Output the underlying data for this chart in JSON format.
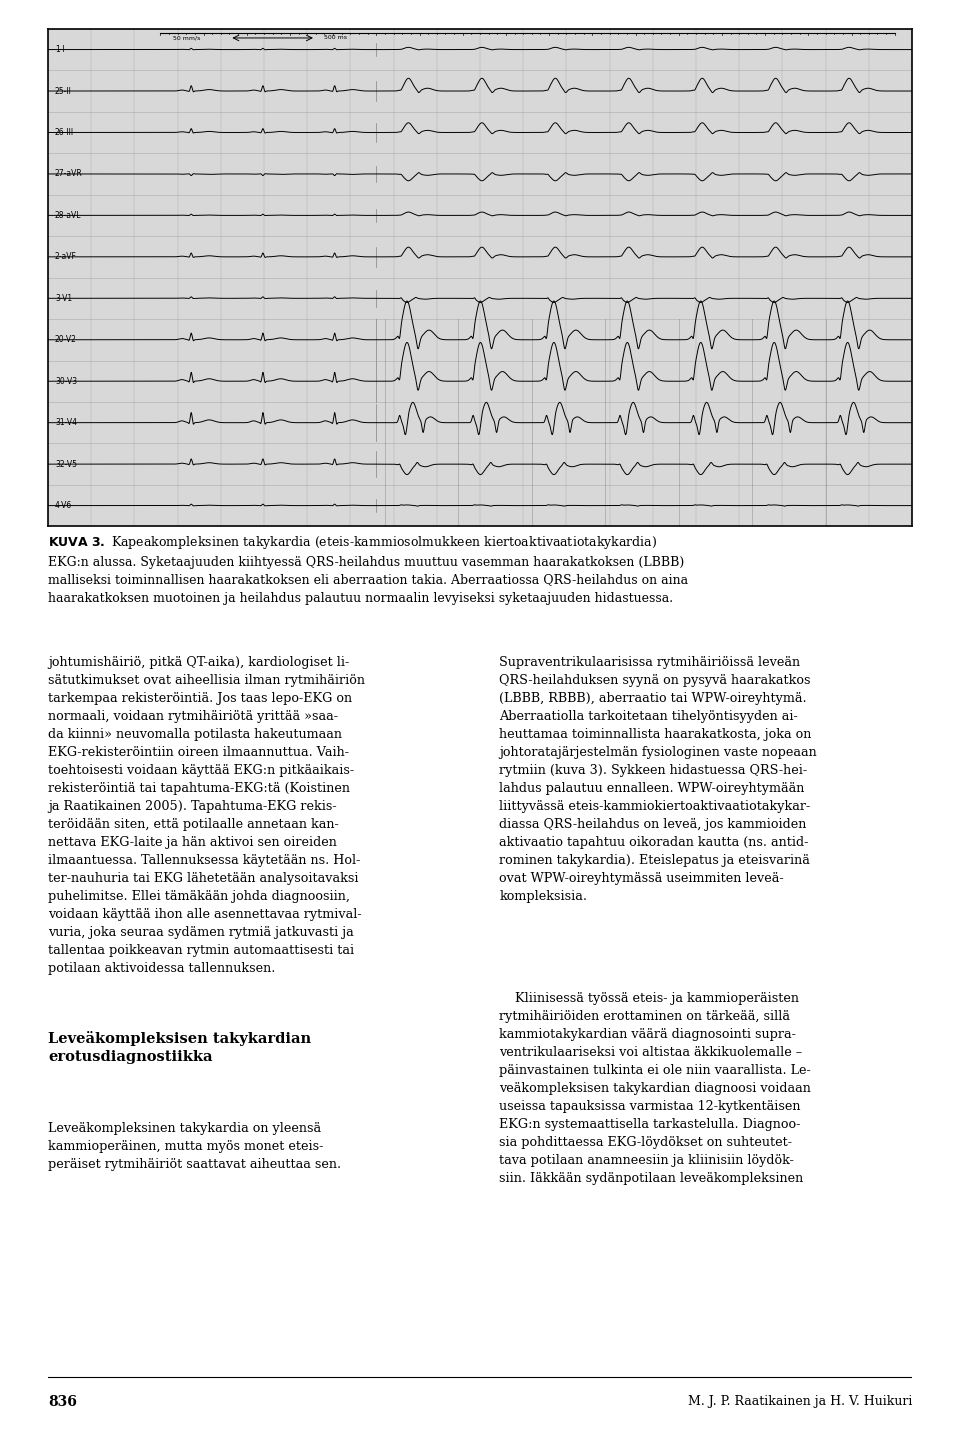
{
  "bg_color": "#ffffff",
  "figure_caption_bold": "KUVA 3.",
  "figure_caption_text": " Kapeakompleksinen takykardia (eteis-kammiosolmukkeen kiertoaktivaatiotakykardia) EKG:n alussa. Syketaajuuden kiihtyessä QRS-heilahdus muuttuu vasemman haarakatkoksen (LBBB) malliseksi toiminnallisen haarakatkoksen eli aberraation takia. Aberraatiossa QRS-heilahdus on aina haarakatkoksen muotoinen ja heilahdus palautuu normaalin levyiseksi syketaajuuden hidastuessa.",
  "ecg_labels": [
    "1-I",
    "25-II",
    "26-III",
    "27-aVR",
    "28-aVL",
    "2-aVF",
    "3-V1",
    "20-V2",
    "30-V3",
    "31-V4",
    "32-V5",
    "4-V6"
  ],
  "page_number": "836",
  "footer_right": "M. J. P. Raatikainen ja H. V. Huikuri",
  "caption_fontsize": 9.0,
  "body_fontsize": 9.2,
  "heading_fontsize": 10.5,
  "left_text_1": "johtumishäiriö, pitkä QT-aika), kardiologiset li-\nsätutkimukset ovat aiheellisia ilman rytmihäiriön\ntarkempaa rekisteröintiä. Jos taas lepo-EKG on\nnormaali, voidaan rytmihäiriötä yrittää »saa-\nda kiinni» neuvomalla potilasta hakeutumaan\nEKG-rekisteröintiin oireen ilmaannuttua. Vaih-\ntoehtoisesti voidaan käyttää EKG:n pitkäaikais-\nrekisteröintiä tai tapahtuma-EKG:tä (Koistinen\nja Raatikainen 2005). Tapahtuma-EKG rekis-\nteröidään siten, että potilaalle annetaan kan-\nnettava EKG-laite ja hän aktivoi sen oireiden\nilmaantuessa. Tallennuksessa käytetään ns. Hol-\nter-nauhuria tai EKG lähetetään analysoitavaksi\npuhelimitse. Ellei tämäkään johda diagnoosiin,\nvoidaan käyttää ihon alle asennettavaa rytmival-\nvuria, joka seuraa sydämen rytmiä jatkuvasti ja\ntallentaa poikkeavan rytmin automaattisesti tai\npotilaan aktivoidessa tallennuksen.",
  "left_heading": "Leveäkompleksisen takykardian\nerotusdiagnostiikka",
  "left_text_2": "Leveäkompleksinen takykardia on yleensä\nkammioperäinen, mutta myös monet eteis-\nperäiset rytmihäiriöt saattavat aiheuttaa sen.",
  "right_text_1": "Supraventrikulaarisissa rytmihäiriöissä leveän\nQRS-heilahduksen syynä on pysyvä haarakatkos\n(LBBB, RBBB), aberraatio tai WPW-oireyhtymä.\nAberraatiolla tarkoitetaan tihelyöntisyyden ai-\nheuttamaa toiminnallista haarakatkosta, joka on\njohtoratajärjestelmän fysiologinen vaste nopeaan\nrytmiin (kuva 3). Sykkeen hidastuessa QRS-hei-\nlahdus palautuu ennalleen. WPW-oireyhtymään\nliittyvässä eteis-kammiokiertoaktivaatiotakykar-\ndiassa QRS-heilahdus on leveä, jos kammioiden\naktivaatio tapahtuu oikoradan kautta (ns. antid-\nrominen takykardia). Eteislepatus ja eteisvarinä\novat WPW-oireyhtymässä useimmiten leveä-\nkompleksisia.",
  "right_text_2": "    Kliinisessä työssä eteis- ja kammioperäisten\nrytmihäiriöiden erottaminen on tärkeää, sillä\nkammiotakykardian väärä diagnosointi supra-\nventrikulaariseksi voi altistaa äkkikuolemalle –\npäinvastainen tulkinta ei ole niin vaarallista. Le-\nveäkompleksisen takykardian diagnoosi voidaan\nuseissa tapauksissa varmistaa 12-kytkentäisen\nEKG:n systemaattisella tarkastelulla. Diagnoo-\nsia pohdittaessa EKG-löydökset on suhteutet-\ntava potilaan anamneesiin ja kliinisiin löydök-\nsiin. Iäkkään sydänpotilaan leveäkompleksinen"
}
